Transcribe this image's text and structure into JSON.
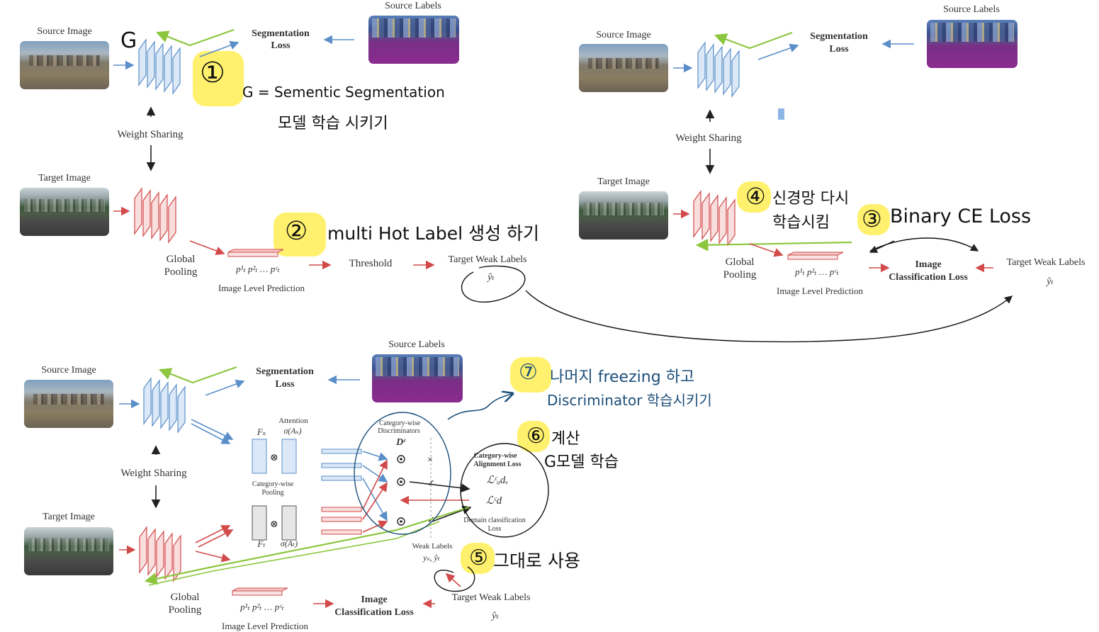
{
  "panel1": {
    "source_image": "Source Image",
    "source_labels": "Source Labels",
    "segmentation_loss": [
      "Segmentation",
      "Loss"
    ],
    "weight_sharing": "Weight Sharing",
    "target_image": "Target Image",
    "global_pooling": [
      "Global",
      "Pooling"
    ],
    "pred_vars": "p¹ₜ p²ₜ … pᶜₜ",
    "image_level_prediction": "Image Level Prediction",
    "threshold": "Threshold",
    "target_weak_labels": "Target Weak Labels",
    "y_hat": "ŷₜ"
  },
  "panel2": {
    "source_image": "Source Image",
    "source_labels": "Source Labels",
    "segmentation_loss": [
      "Segmentation",
      "Loss"
    ],
    "weight_sharing": "Weight Sharing",
    "target_image": "Target Image",
    "global_pooling": [
      "Global",
      "Pooling"
    ],
    "pred_vars": "p¹ₜ p²ₜ … pᶜₜ",
    "image_level_prediction": "Image Level Prediction",
    "image_classification_loss": [
      "Image",
      "Classification Loss"
    ],
    "target_weak_labels": "Target Weak Labels",
    "y_hat": "ŷₜ"
  },
  "panel3": {
    "source_image": "Source Image",
    "source_labels": "Source Labels",
    "segmentation_loss": [
      "Segmentation",
      "Loss"
    ],
    "weight_sharing": "Weight Sharing",
    "target_image": "Target Image",
    "attention": [
      "Attention",
      "σ(Aₛ)"
    ],
    "fs": "Fₛ",
    "ft": "Fₜ",
    "sigma_at": "σ(Aₜ)",
    "category_wise_pooling": [
      "Category-wise",
      "Pooling"
    ],
    "category_wise_discriminators": [
      "Category-wise",
      "Discriminators"
    ],
    "dc": "Dᶜ",
    "category_wise_alignment_loss": [
      "Category-wise",
      "Alignment Loss"
    ],
    "l_adv": "ℒᶜₐdᵥ",
    "l_d": "ℒᶜd",
    "domain_classification_loss": [
      "Domain classification",
      "Loss"
    ],
    "weak_labels": [
      "Weak Labels",
      "yₛ, ŷₜ"
    ],
    "global_pooling": [
      "Global",
      "Pooling"
    ],
    "pred_vars": "p¹ₜ p²ₜ … pᶜₜ",
    "image_level_prediction": "Image Level Prediction",
    "image_classification_loss": [
      "Image",
      "Classification Loss"
    ],
    "target_weak_labels": "Target Weak Labels",
    "y_hat": "ŷₜ"
  },
  "annotations": {
    "g_letter": "G",
    "step1": "①",
    "step1_text_line1": "G = Sementic  Segmentation",
    "step1_text_line2": "모델   학습   시키기",
    "step2": "②",
    "step2_text": "multi  Hot  Label 생성 하기",
    "step3": "③",
    "step3_text": "Binary  CE  Loss",
    "step4": "④",
    "step4_text_line1": "신경망 다시",
    "step4_text_line2": "학습시킴",
    "step5": "⑤",
    "step5_text": "그대로  사용",
    "step6": "⑥",
    "step6_text_line1": "계산",
    "step6_text_line2": "G모델 학습",
    "step7": "⑦",
    "step7_text_line1": "나머지 freezing 하고",
    "step7_text_line2": "Discriminator  학습시키기"
  },
  "colors": {
    "blue": "#5b8fc9",
    "red": "#d24a4a",
    "green": "#8cc63e",
    "highlight": "#ffec3c",
    "ink_blue": "#1d4f7a",
    "labels_purple": "#8a2b8f"
  }
}
